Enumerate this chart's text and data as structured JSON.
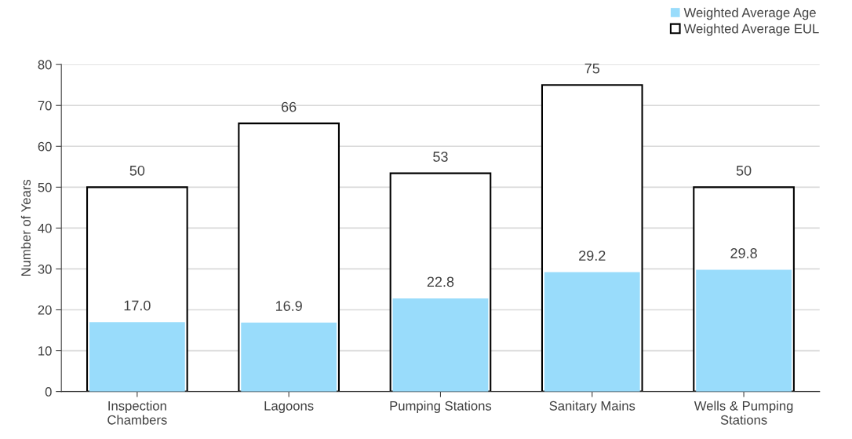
{
  "chart_data": {
    "type": "bar",
    "ylabel": "Number of Years",
    "categories": [
      "Inspection\nChambers",
      "Lagoons",
      "Pumping Stations",
      "Sanitary Mains",
      "Wells & Pumping\nStations"
    ],
    "series": [
      {
        "name": "Weighted Average Age",
        "color": "#99dcfb",
        "values": [
          17.0,
          16.9,
          22.8,
          29.2,
          29.8
        ],
        "value_labels": [
          "17.0",
          "16.9",
          "22.8",
          "29.2",
          "29.8"
        ]
      },
      {
        "name": "Weighted Average EUL",
        "color": "#000000",
        "values": [
          50,
          65.6,
          53.4,
          75,
          50
        ],
        "value_labels": [
          "50",
          "66",
          "53",
          "75",
          "50"
        ]
      }
    ],
    "ylim": [
      0,
      80
    ],
    "yticks": [
      0,
      10,
      20,
      30,
      40,
      50,
      60,
      70,
      80
    ],
    "grid": "y",
    "legend": "top right"
  }
}
